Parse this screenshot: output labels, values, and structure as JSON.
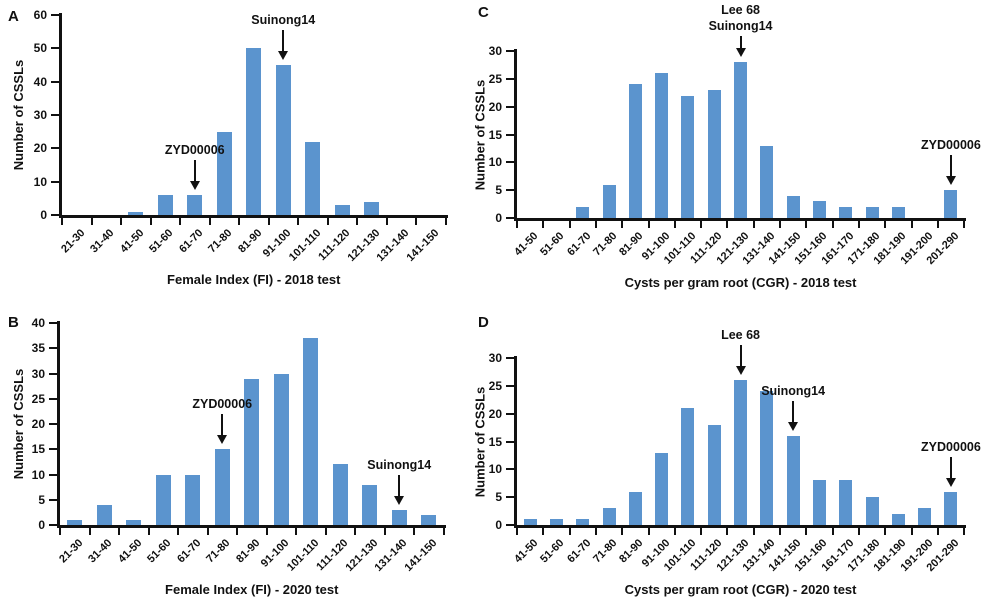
{
  "figure": {
    "bar_color": "#5b94ce",
    "axis_color": "#111111",
    "background": "#ffffff"
  },
  "chart_data": [
    {
      "panel": "A",
      "type": "bar",
      "title": "",
      "xlabel": "Female Index (FI) - 2018 test",
      "ylabel": "Number of CSSLs",
      "ylim": [
        0,
        60
      ],
      "ytick_step": 10,
      "grid": false,
      "legend": "none",
      "categories": [
        "21-30",
        "31-40",
        "41-50",
        "51-60",
        "61-70",
        "71-80",
        "81-90",
        "91-100",
        "101-110",
        "111-120",
        "121-130",
        "131-140",
        "141-150"
      ],
      "values": [
        0,
        0,
        1,
        6,
        6,
        25,
        50,
        45,
        22,
        3,
        4,
        0,
        0
      ],
      "annotations": [
        {
          "lines": [
            "Suinong14"
          ],
          "category": "91-100"
        },
        {
          "lines": [
            "ZYD00006"
          ],
          "category": "61-70"
        }
      ]
    },
    {
      "panel": "B",
      "type": "bar",
      "title": "",
      "xlabel": "Female Index (FI) - 2020 test",
      "ylabel": "Number of CSSLs",
      "ylim": [
        0,
        40
      ],
      "ytick_step": 5,
      "grid": false,
      "legend": "none",
      "categories": [
        "21-30",
        "31-40",
        "41-50",
        "51-60",
        "61-70",
        "71-80",
        "81-90",
        "91-100",
        "101-110",
        "111-120",
        "121-130",
        "131-140",
        "141-150"
      ],
      "values": [
        1,
        4,
        1,
        10,
        10,
        15,
        29,
        30,
        37,
        12,
        8,
        3,
        2
      ],
      "annotations": [
        {
          "lines": [
            "ZYD00006"
          ],
          "category": "71-80"
        },
        {
          "lines": [
            "Suinong14"
          ],
          "category": "131-140"
        }
      ]
    },
    {
      "panel": "C",
      "type": "bar",
      "title": "",
      "xlabel": "Cysts  per gram root (CGR)  - 2018 test",
      "ylabel": "Number of CSSLs",
      "ylim": [
        0,
        30
      ],
      "ytick_step": 5,
      "grid": false,
      "legend": "none",
      "categories": [
        "41-50",
        "51-60",
        "61-70",
        "71-80",
        "81-90",
        "91-100",
        "101-110",
        "111-120",
        "121-130",
        "131-140",
        "141-150",
        "151-160",
        "161-170",
        "171-180",
        "181-190",
        "191-200",
        "201-290"
      ],
      "values": [
        0,
        0,
        2,
        6,
        24,
        26,
        22,
        23,
        28,
        13,
        4,
        3,
        2,
        2,
        2,
        0,
        5
      ],
      "annotations": [
        {
          "lines": [
            "Lee 68",
            "Suinong14"
          ],
          "category": "121-130"
        },
        {
          "lines": [
            "ZYD00006"
          ],
          "category": "201-290"
        }
      ]
    },
    {
      "panel": "D",
      "type": "bar",
      "title": "",
      "xlabel": "Cysts  per gram root (CGR)  - 2020 test",
      "ylabel": "Number of CSSLs",
      "ylim": [
        0,
        30
      ],
      "ytick_step": 5,
      "grid": false,
      "legend": "none",
      "categories": [
        "41-50",
        "51-60",
        "61-70",
        "71-80",
        "81-90",
        "91-100",
        "101-110",
        "111-120",
        "121-130",
        "131-140",
        "141-150",
        "151-160",
        "161-170",
        "171-180",
        "181-190",
        "191-200",
        "201-290"
      ],
      "values": [
        1,
        1,
        1,
        3,
        6,
        13,
        21,
        18,
        26,
        24,
        16,
        8,
        8,
        5,
        2,
        3,
        6
      ],
      "annotations": [
        {
          "lines": [
            "Lee 68"
          ],
          "category": "121-130"
        },
        {
          "lines": [
            "Suinong14"
          ],
          "category": "141-150"
        },
        {
          "lines": [
            "ZYD00006"
          ],
          "category": "201-290"
        }
      ]
    }
  ]
}
